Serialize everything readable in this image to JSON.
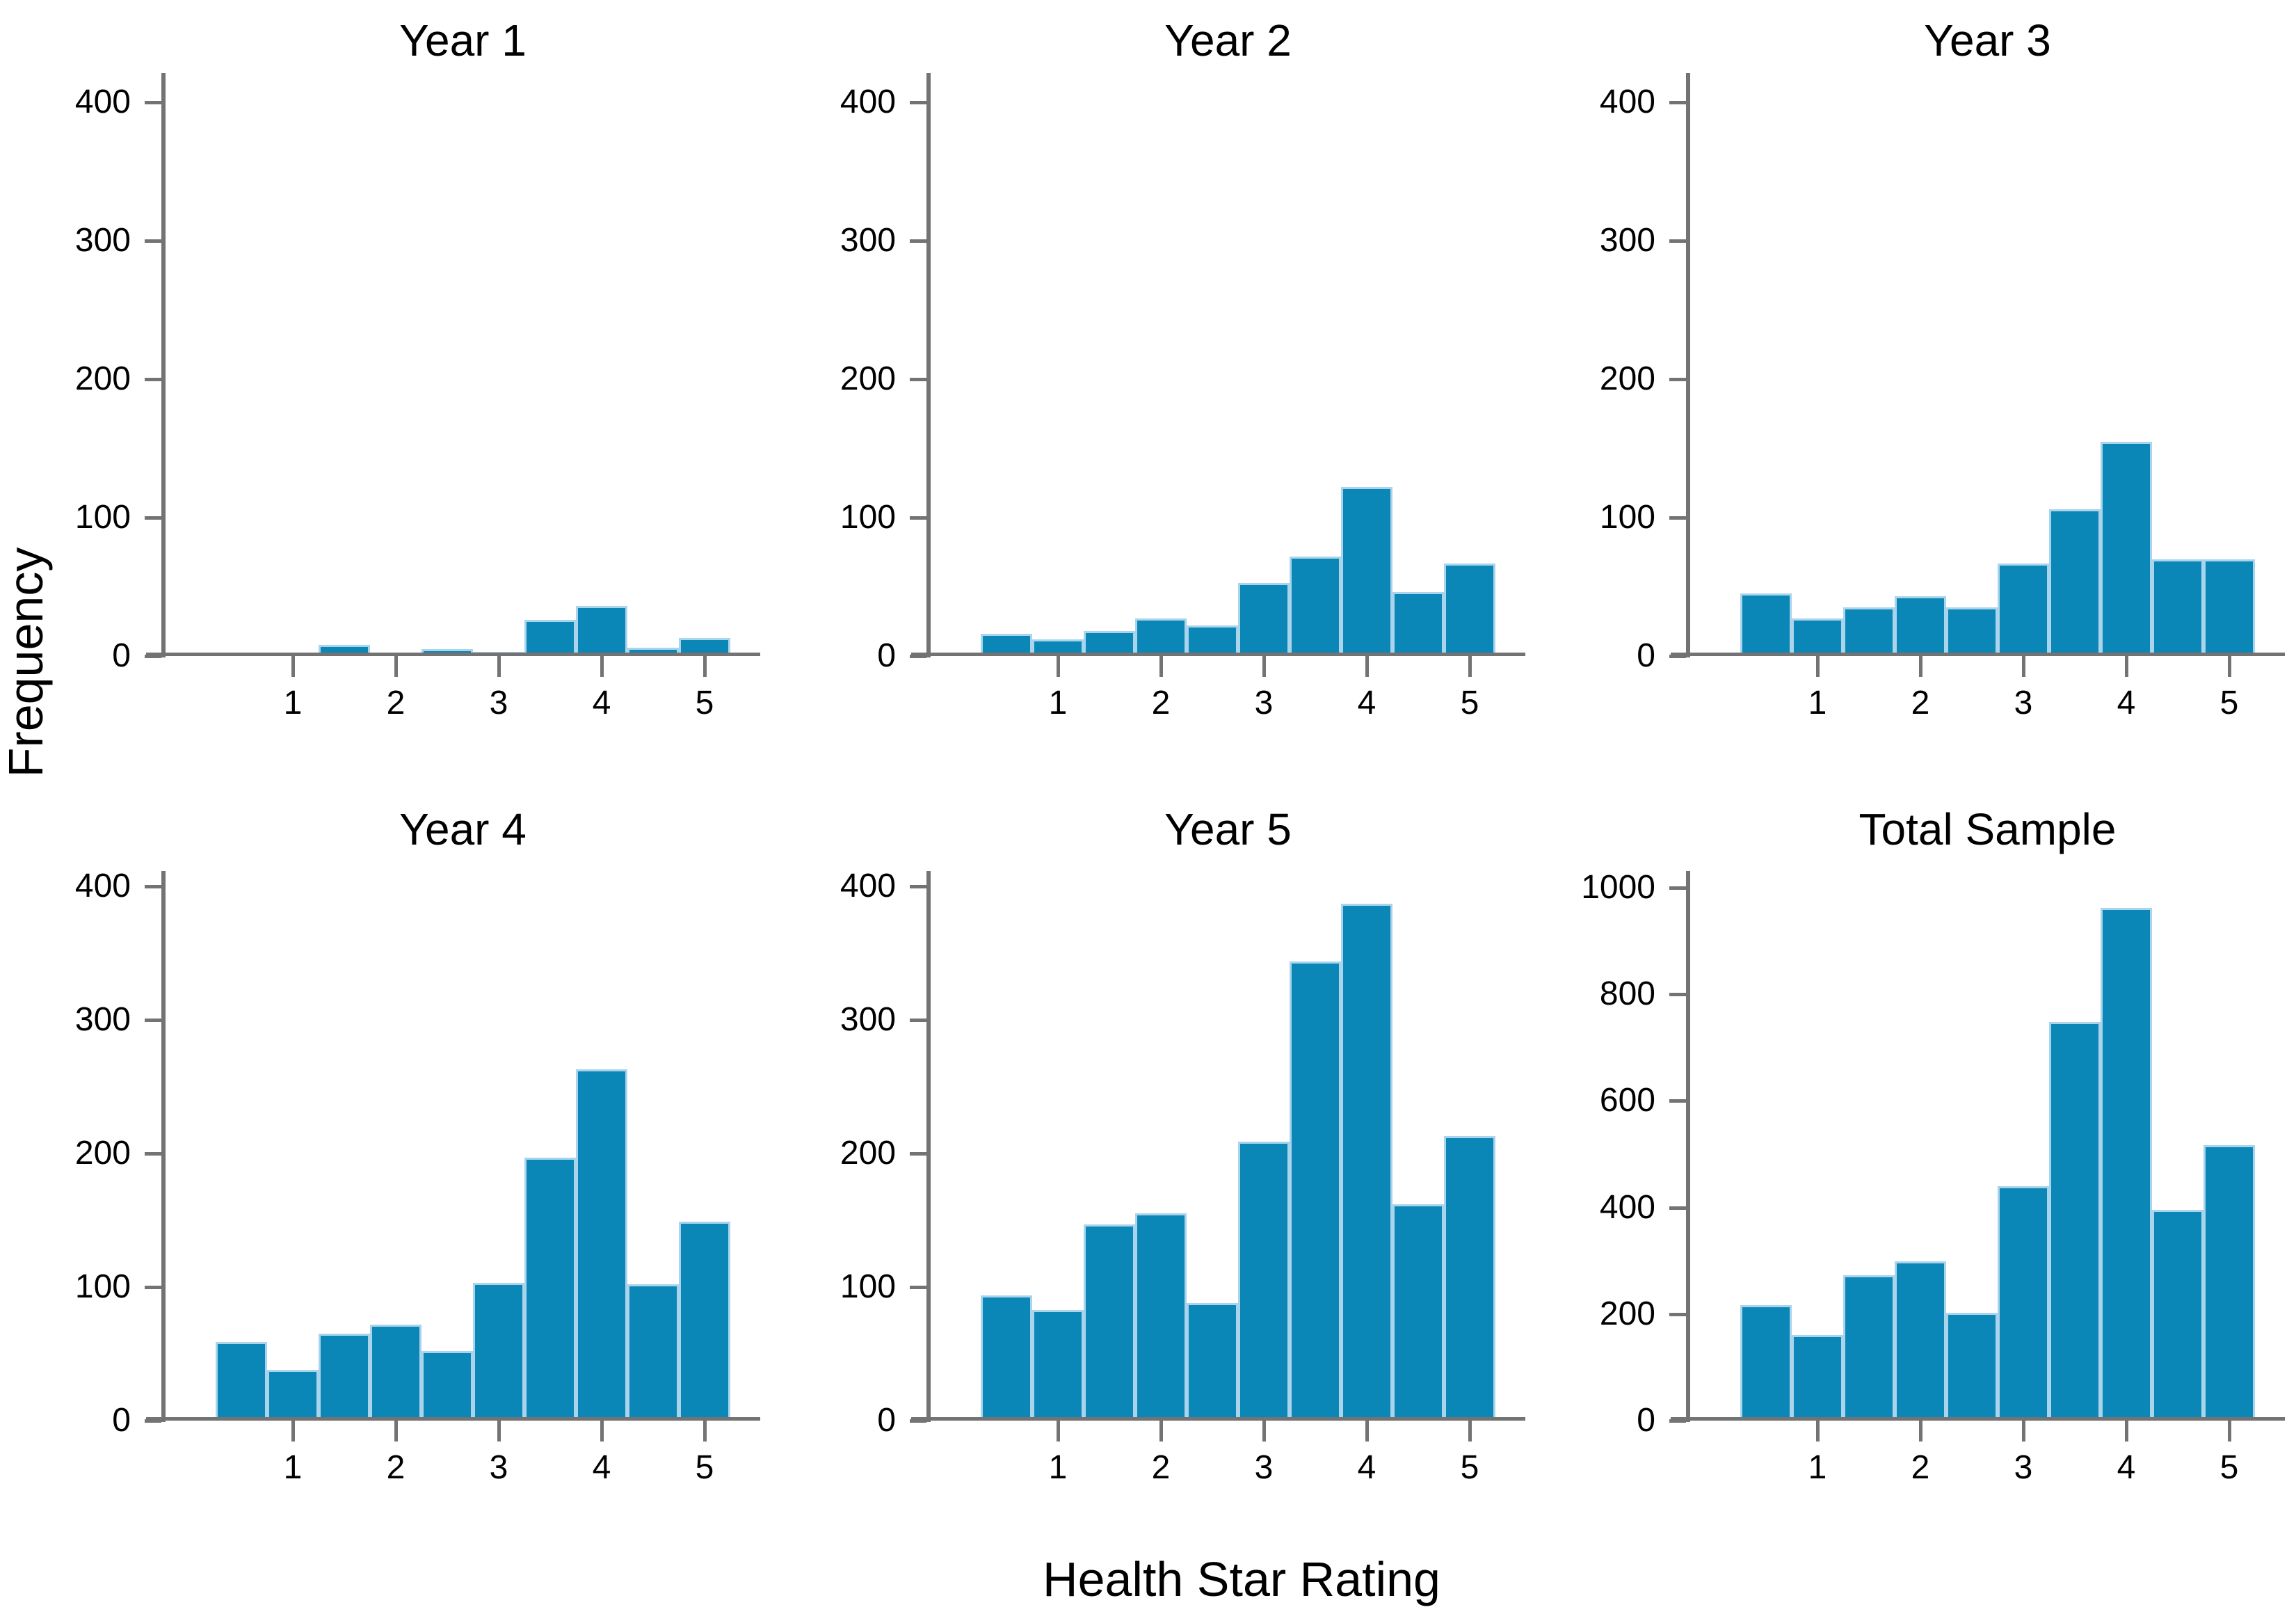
{
  "figure": {
    "ylabel": "Frequency",
    "xlabel": "Health Star Rating",
    "background": "#ffffff",
    "bar_fill": "#0a87b6",
    "bar_edge": "#a9d4ec",
    "axis_color": "#737373",
    "text_color": "#000000",
    "bins": [
      0.5,
      1,
      1.5,
      2,
      2.5,
      3,
      3.5,
      4,
      4.5,
      5
    ],
    "xticks": [
      1,
      2,
      3,
      4,
      5
    ],
    "grid": false,
    "legend": false
  },
  "chart_data": [
    {
      "type": "bar",
      "title": "Year 1",
      "categories": [
        0.5,
        1,
        1.5,
        2,
        2.5,
        3,
        3.5,
        4,
        4.5,
        5
      ],
      "values": [
        0,
        0,
        8,
        0,
        5,
        3,
        26,
        36,
        6,
        13
      ],
      "yticks": [
        0,
        100,
        200,
        300,
        400
      ],
      "ylim": [
        0,
        420
      ],
      "xlabel": "Health Star Rating",
      "ylabel": "Frequency"
    },
    {
      "type": "bar",
      "title": "Year 2",
      "categories": [
        0.5,
        1,
        1.5,
        2,
        2.5,
        3,
        3.5,
        4,
        4.5,
        5
      ],
      "values": [
        16,
        12,
        18,
        27,
        22,
        53,
        72,
        122,
        46,
        67
      ],
      "yticks": [
        0,
        100,
        200,
        300,
        400
      ],
      "ylim": [
        0,
        420
      ],
      "xlabel": "Health Star Rating",
      "ylabel": "Frequency"
    },
    {
      "type": "bar",
      "title": "Year 3",
      "categories": [
        0.5,
        1,
        1.5,
        2,
        2.5,
        3,
        3.5,
        4,
        4.5,
        5
      ],
      "values": [
        45,
        27,
        35,
        43,
        35,
        67,
        106,
        155,
        70,
        70
      ],
      "yticks": [
        0,
        100,
        200,
        300,
        400
      ],
      "ylim": [
        0,
        420
      ],
      "xlabel": "Health Star Rating",
      "ylabel": "Frequency"
    },
    {
      "type": "bar",
      "title": "Year 4",
      "categories": [
        0.5,
        1,
        1.5,
        2,
        2.5,
        3,
        3.5,
        4,
        4.5,
        5
      ],
      "values": [
        59,
        38,
        65,
        72,
        52,
        103,
        197,
        263,
        102,
        149
      ],
      "yticks": [
        0,
        100,
        200,
        300,
        400
      ],
      "ylim": [
        0,
        411
      ],
      "xlabel": "Health Star Rating",
      "ylabel": "Frequency"
    },
    {
      "type": "bar",
      "title": "Year 5",
      "categories": [
        0.5,
        1,
        1.5,
        2,
        2.5,
        3,
        3.5,
        4,
        4.5,
        5
      ],
      "values": [
        94,
        83,
        147,
        155,
        88,
        209,
        344,
        387,
        162,
        213
      ],
      "yticks": [
        0,
        100,
        200,
        300,
        400
      ],
      "ylim": [
        0,
        411
      ],
      "xlabel": "Health Star Rating",
      "ylabel": "Frequency"
    },
    {
      "type": "bar",
      "title": "Total Sample",
      "categories": [
        0.5,
        1,
        1.5,
        2,
        2.5,
        3,
        3.5,
        4,
        4.5,
        5
      ],
      "values": [
        217,
        161,
        273,
        299,
        203,
        440,
        748,
        962,
        396,
        517
      ],
      "yticks": [
        0,
        200,
        400,
        600,
        800,
        1000
      ],
      "ylim": [
        0,
        1031
      ],
      "xlabel": "Health Star Rating",
      "ylabel": "Frequency"
    }
  ]
}
